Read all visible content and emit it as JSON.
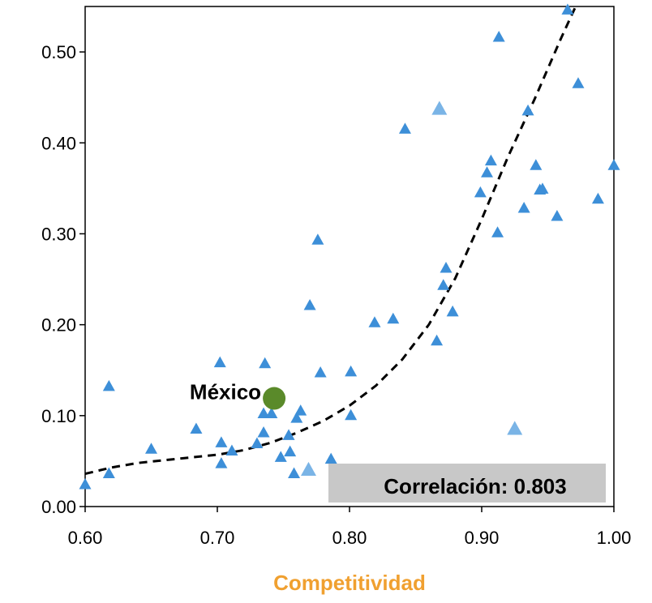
{
  "chart_data": {
    "type": "scatter",
    "xlabel": "Competitividad",
    "ylabel": "",
    "xlim": [
      0.6,
      1.0
    ],
    "ylim": [
      0.0,
      0.55
    ],
    "x_ticks": [
      "0.60",
      "0.70",
      "0.80",
      "0.90",
      "1.00"
    ],
    "y_ticks": [
      "0.00",
      "0.10",
      "0.20",
      "0.30",
      "0.40",
      "0.50"
    ],
    "grid": false,
    "points": [
      {
        "x": 0.6,
        "y": 0.024
      },
      {
        "x": 0.618,
        "y": 0.036
      },
      {
        "x": 0.618,
        "y": 0.132
      },
      {
        "x": 0.65,
        "y": 0.063
      },
      {
        "x": 0.684,
        "y": 0.085
      },
      {
        "x": 0.702,
        "y": 0.158
      },
      {
        "x": 0.703,
        "y": 0.07
      },
      {
        "x": 0.703,
        "y": 0.047
      },
      {
        "x": 0.711,
        "y": 0.061
      },
      {
        "x": 0.73,
        "y": 0.069
      },
      {
        "x": 0.735,
        "y": 0.102
      },
      {
        "x": 0.735,
        "y": 0.081
      },
      {
        "x": 0.736,
        "y": 0.157
      },
      {
        "x": 0.741,
        "y": 0.102
      },
      {
        "x": 0.748,
        "y": 0.054
      },
      {
        "x": 0.754,
        "y": 0.078
      },
      {
        "x": 0.755,
        "y": 0.06
      },
      {
        "x": 0.758,
        "y": 0.036
      },
      {
        "x": 0.76,
        "y": 0.097
      },
      {
        "x": 0.763,
        "y": 0.105
      },
      {
        "x": 0.77,
        "y": 0.221
      },
      {
        "x": 0.776,
        "y": 0.293
      },
      {
        "x": 0.778,
        "y": 0.147
      },
      {
        "x": 0.786,
        "y": 0.052
      },
      {
        "x": 0.801,
        "y": 0.148
      },
      {
        "x": 0.801,
        "y": 0.1
      },
      {
        "x": 0.819,
        "y": 0.202
      },
      {
        "x": 0.833,
        "y": 0.206
      },
      {
        "x": 0.842,
        "y": 0.415
      },
      {
        "x": 0.866,
        "y": 0.182
      },
      {
        "x": 0.871,
        "y": 0.243
      },
      {
        "x": 0.873,
        "y": 0.262
      },
      {
        "x": 0.878,
        "y": 0.214
      },
      {
        "x": 0.899,
        "y": 0.345
      },
      {
        "x": 0.904,
        "y": 0.367
      },
      {
        "x": 0.907,
        "y": 0.38
      },
      {
        "x": 0.912,
        "y": 0.301
      },
      {
        "x": 0.913,
        "y": 0.516
      },
      {
        "x": 0.932,
        "y": 0.328
      },
      {
        "x": 0.935,
        "y": 0.435
      },
      {
        "x": 0.941,
        "y": 0.375
      },
      {
        "x": 0.944,
        "y": 0.348
      },
      {
        "x": 0.946,
        "y": 0.349
      },
      {
        "x": 0.957,
        "y": 0.319
      },
      {
        "x": 0.965,
        "y": 0.546
      },
      {
        "x": 0.973,
        "y": 0.465
      },
      {
        "x": 0.988,
        "y": 0.338
      },
      {
        "x": 1.0,
        "y": 0.375
      }
    ],
    "highlight_points": [
      {
        "x": 0.868,
        "y": 0.437
      },
      {
        "x": 0.925,
        "y": 0.085
      },
      {
        "x": 0.769,
        "y": 0.04
      }
    ],
    "mexico": {
      "label": "México",
      "x": 0.743,
      "y": 0.119
    },
    "trendline": {
      "style": "dashed",
      "x": [
        0.6,
        0.62,
        0.64,
        0.66,
        0.68,
        0.7,
        0.72,
        0.74,
        0.76,
        0.78,
        0.8,
        0.82,
        0.84,
        0.86,
        0.88,
        0.9,
        0.92,
        0.94,
        0.96,
        0.972
      ],
      "y": [
        0.036,
        0.043,
        0.048,
        0.051,
        0.054,
        0.057,
        0.062,
        0.07,
        0.081,
        0.094,
        0.111,
        0.133,
        0.162,
        0.2,
        0.251,
        0.316,
        0.385,
        0.448,
        0.515,
        0.553
      ]
    },
    "annotation": "Correlación: 0.803",
    "colors": {
      "points": "#3d8fd8",
      "highlight_points": "#7ab4e6",
      "mexico": "#5a8a2a",
      "trendline": "#000000",
      "xlabel": "#f0a030",
      "annotation_bg": "#c8c8c8"
    }
  }
}
